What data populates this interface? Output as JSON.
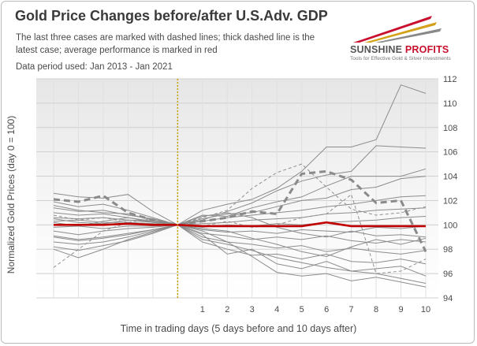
{
  "header": {
    "title": "Gold Price Changes before/after U.S.Adv. GDP",
    "subtitle": "The last three cases are marked with dashed lines; thick dashed line is the latest case; average performance is marked in red",
    "period": "Data period used: Jan 2013 - Jan 2021"
  },
  "logo": {
    "name_part1": "SUNSHINE",
    "name_part2": "PROFITS",
    "tagline": "Tools for Effective Gold & Silver Investments"
  },
  "colors": {
    "average": "#c00000",
    "cases": "#8c8c8c",
    "day_zero_marker": "#c9a000",
    "logo_accent": "#c8102e"
  },
  "chart_data": {
    "type": "line",
    "title": "Gold Price Changes before/after U.S.Adv. GDP",
    "xlabel": "Time in trading days (5 days before and 10 days after)",
    "ylabel": "Normalized Gold Prices (day 0 = 100)",
    "x": [
      -5,
      -4,
      -3,
      -2,
      -1,
      0,
      1,
      2,
      3,
      4,
      5,
      6,
      7,
      8,
      9,
      10
    ],
    "x_tick_labels": [
      "",
      "",
      "",
      "",
      "",
      "",
      "1",
      "2",
      "3",
      "4",
      "5",
      "6",
      "7",
      "8",
      "9",
      "10"
    ],
    "ylim": [
      94,
      112
    ],
    "y_ticks": [
      94,
      96,
      98,
      100,
      102,
      104,
      106,
      108,
      110,
      112
    ],
    "y_axis_side": "right",
    "grid": true,
    "vertical_marker_x": 0,
    "average": {
      "values": [
        100.0,
        100.0,
        100.0,
        100.1,
        100.0,
        100.0,
        99.9,
        99.9,
        99.9,
        99.9,
        99.9,
        100.2,
        99.9,
        99.9,
        99.9,
        99.9
      ]
    },
    "latest_case": {
      "values": [
        102.1,
        101.9,
        102.4,
        101.0,
        100.4,
        100.0,
        100.3,
        100.6,
        101.1,
        100.9,
        104.2,
        104.4,
        103.7,
        101.8,
        102.0,
        97.8
      ]
    },
    "recent_cases": [
      {
        "values": [
          96.5,
          98.0,
          99.5,
          100.2,
          100.5,
          100.0,
          100.6,
          101.2,
          103.0,
          104.3,
          105.0,
          103.1,
          101.3,
          100.8,
          101.0,
          101.5
        ]
      },
      {
        "values": [
          100.8,
          100.4,
          100.6,
          100.2,
          100.1,
          100.0,
          99.9,
          100.3,
          99.8,
          100.0,
          100.6,
          100.9,
          102.5,
          96.0,
          96.2,
          97.2
        ]
      }
    ],
    "cases": [
      {
        "values": [
          102.6,
          102.3,
          102.2,
          102.5,
          101.1,
          100.0,
          101.2,
          101.7,
          102.1,
          103.0,
          104.4,
          106.4,
          106.4,
          107.0,
          111.5,
          110.8
        ]
      },
      {
        "values": [
          101.9,
          101.5,
          101.7,
          101.2,
          100.6,
          100.0,
          100.4,
          101.1,
          101.8,
          102.8,
          103.6,
          104.1,
          104.4,
          106.5,
          106.4,
          106.3
        ]
      },
      {
        "values": [
          101.4,
          101.1,
          101.2,
          100.8,
          100.5,
          100.0,
          100.8,
          100.7,
          101.4,
          101.9,
          102.3,
          103.2,
          104.0,
          104.0,
          104.0,
          104.6
        ]
      },
      {
        "values": [
          101.0,
          100.8,
          100.9,
          100.6,
          100.3,
          100.0,
          100.5,
          100.9,
          101.0,
          101.5,
          102.0,
          102.2,
          102.9,
          103.1,
          103.8,
          104.0
        ]
      },
      {
        "values": [
          100.6,
          100.5,
          100.6,
          100.4,
          100.2,
          100.0,
          100.3,
          100.6,
          100.8,
          101.0,
          101.2,
          101.5,
          101.7,
          102.0,
          102.3,
          102.4
        ]
      },
      {
        "values": [
          100.3,
          100.4,
          100.2,
          100.2,
          100.1,
          100.0,
          100.1,
          100.2,
          100.4,
          100.5,
          100.6,
          100.9,
          101.0,
          101.2,
          101.3,
          101.4
        ]
      },
      {
        "values": [
          99.8,
          99.9,
          99.7,
          99.9,
          99.9,
          100.0,
          99.8,
          100.0,
          99.9,
          100.1,
          100.0,
          100.2,
          100.3,
          100.4,
          100.6,
          100.7
        ]
      },
      {
        "values": [
          99.5,
          99.2,
          99.5,
          99.7,
          99.8,
          100.0,
          99.6,
          99.4,
          99.5,
          99.3,
          99.6,
          99.5,
          99.4,
          99.8,
          99.7,
          99.9
        ]
      },
      {
        "values": [
          99.1,
          98.8,
          99.0,
          99.3,
          99.6,
          100.0,
          99.3,
          99.1,
          98.8,
          99.0,
          98.8,
          99.1,
          98.7,
          98.5,
          98.8,
          98.6
        ]
      },
      {
        "values": [
          98.6,
          98.4,
          98.6,
          99.0,
          99.5,
          100.0,
          99.0,
          98.6,
          98.4,
          98.1,
          98.3,
          97.8,
          98.1,
          97.8,
          97.6,
          97.9
        ]
      },
      {
        "values": [
          98.2,
          97.9,
          98.3,
          98.7,
          99.3,
          100.0,
          98.6,
          98.0,
          97.5,
          97.6,
          97.2,
          97.6,
          97.0,
          96.9,
          97.2,
          96.8
        ]
      },
      {
        "values": [
          98.0,
          97.3,
          98.0,
          98.8,
          99.4,
          100.0,
          99.2,
          97.6,
          98.0,
          96.8,
          96.4,
          97.0,
          96.2,
          96.4,
          96.6,
          95.8
        ]
      },
      {
        "values": [
          99.0,
          98.7,
          98.9,
          99.2,
          99.6,
          100.0,
          98.8,
          98.4,
          97.9,
          97.3,
          96.9,
          96.5,
          96.2,
          96.0,
          95.6,
          95.2
        ]
      },
      {
        "values": [
          100.5,
          100.2,
          100.1,
          100.4,
          100.3,
          100.0,
          99.5,
          98.6,
          97.4,
          96.1,
          95.8,
          96.0,
          95.4,
          95.7,
          95.3,
          94.9
        ]
      },
      {
        "values": [
          101.6,
          101.2,
          101.0,
          100.9,
          100.4,
          100.0,
          99.7,
          99.5,
          98.9,
          98.4,
          97.8,
          97.4,
          98.2,
          98.8,
          98.4,
          98.9
        ]
      },
      {
        "values": [
          100.2,
          99.9,
          100.3,
          100.6,
          100.2,
          100.0,
          100.7,
          101.0,
          100.6,
          99.8,
          99.3,
          99.0,
          99.5,
          99.1,
          99.2,
          99.0
        ]
      }
    ]
  }
}
